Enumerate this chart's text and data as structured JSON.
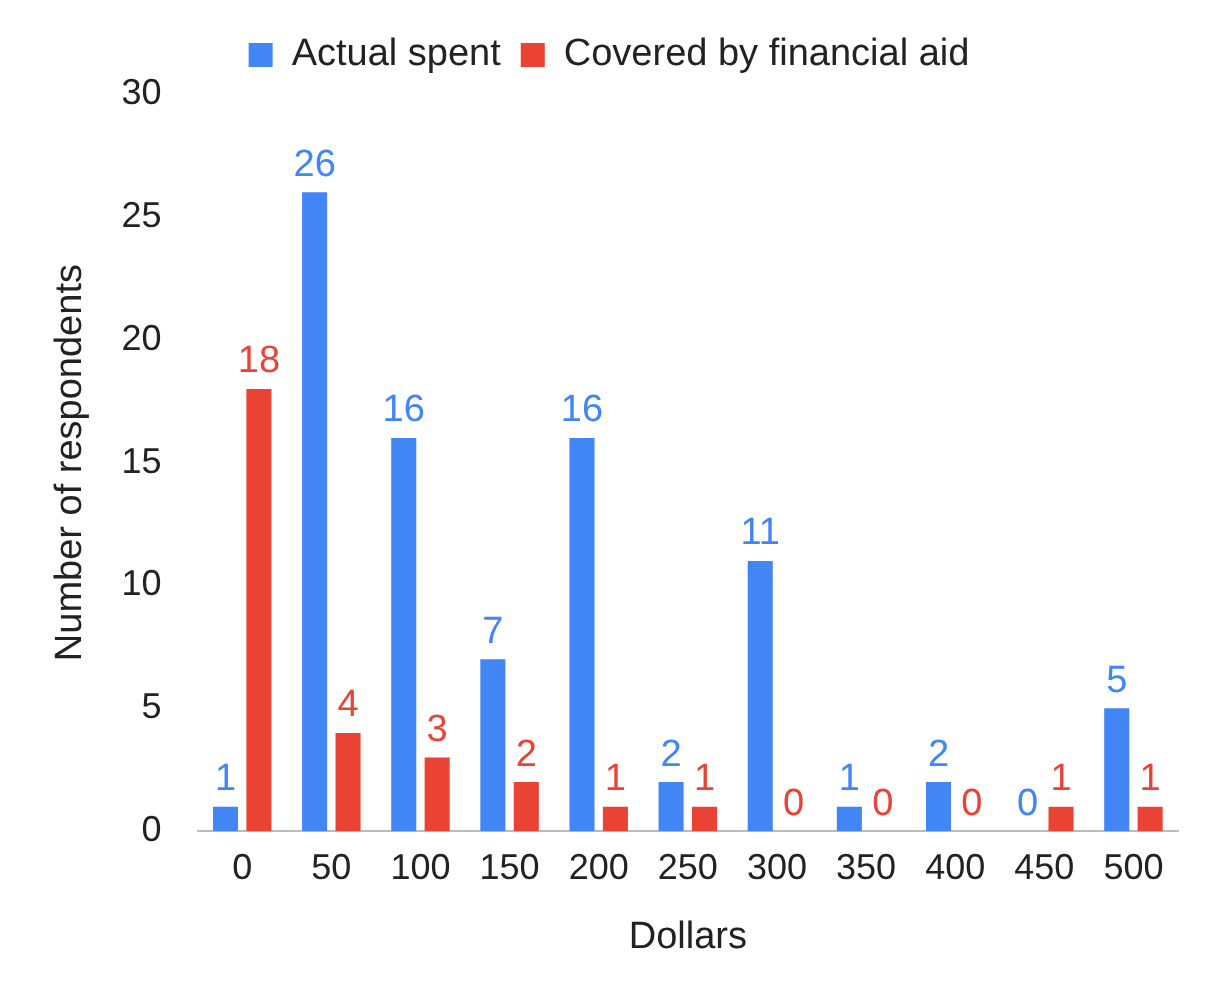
{
  "chart_data": {
    "type": "bar",
    "xlabel": "Dollars",
    "ylabel": "Number of respondents",
    "categories": [
      "0",
      "50",
      "100",
      "150",
      "200",
      "250",
      "300",
      "350",
      "400",
      "450",
      "500"
    ],
    "series": [
      {
        "name": "Actual spent",
        "color": "#4285f4",
        "values": [
          1,
          26,
          16,
          7,
          16,
          2,
          11,
          1,
          2,
          0,
          5
        ]
      },
      {
        "name": "Covered by financial aid",
        "color": "#ea4335",
        "values": [
          18,
          4,
          3,
          2,
          1,
          1,
          0,
          0,
          0,
          1,
          1
        ]
      }
    ],
    "ylim": [
      0,
      30
    ],
    "yticks": [
      0,
      5,
      10,
      15,
      20,
      25,
      30
    ],
    "grid": false,
    "legend": "top",
    "data_labels": true
  }
}
